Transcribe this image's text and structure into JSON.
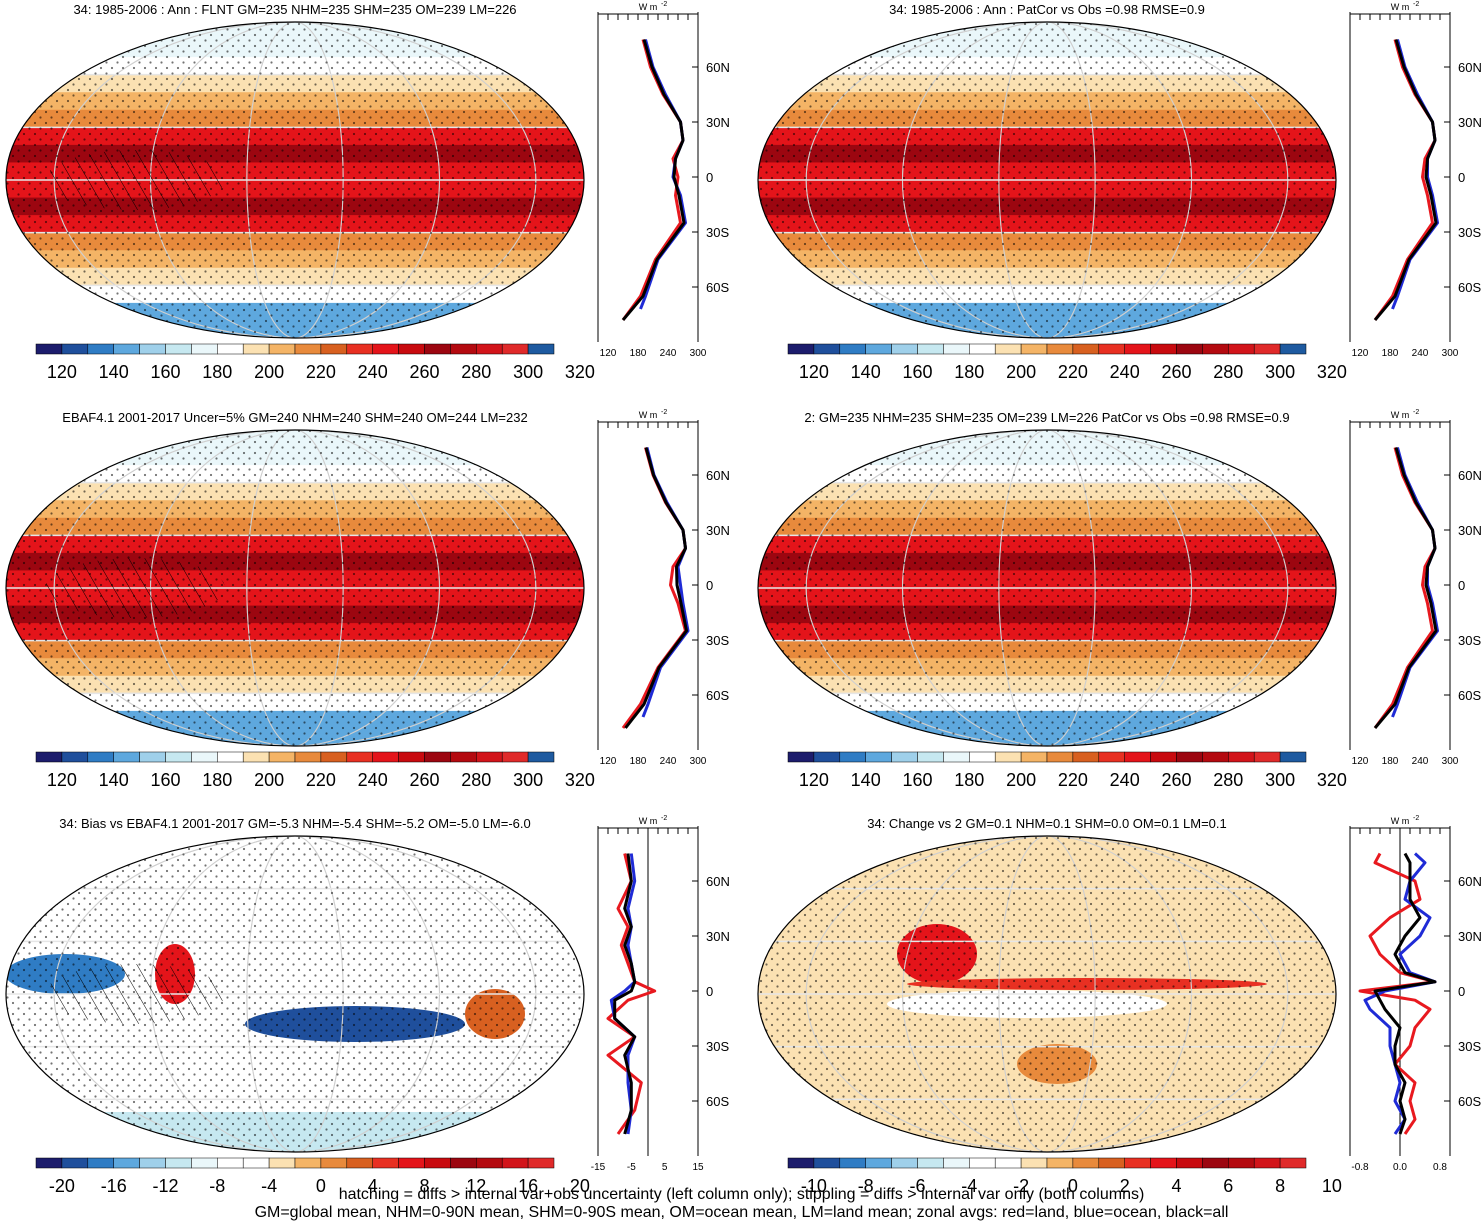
{
  "chart_data": [
    {
      "type": "heatmap",
      "id": "p1",
      "title": "34: 1985-2006 : Ann : FLNT GM=235 NHM=235 SHM=235 OM=239 LM=226",
      "colorbar_ticks": [
        "120",
        "140",
        "160",
        "180",
        "200",
        "220",
        "240",
        "260",
        "280",
        "300",
        "320"
      ],
      "zonal_x_ticks": [
        "120",
        "180",
        "240",
        "300"
      ],
      "zonal_xlim": [
        100,
        300
      ],
      "lat_ticks": [
        "60N",
        "30N",
        "0",
        "30S",
        "60S"
      ],
      "zonal_unit": "W m-2",
      "hatching": true,
      "stippling": true,
      "zonal_series": [
        {
          "color": "land",
          "lat": [
            -78,
            -65,
            -45,
            -25,
            -10,
            0,
            10,
            20,
            30,
            45,
            60,
            75
          ],
          "values": [
            150,
            185,
            215,
            265,
            255,
            260,
            250,
            270,
            265,
            230,
            205,
            190
          ]
        },
        {
          "color": "ocean",
          "lat": [
            -72,
            -65,
            -45,
            -25,
            -10,
            0,
            10,
            20,
            30,
            45,
            60,
            75
          ],
          "values": [
            185,
            195,
            220,
            275,
            265,
            250,
            255,
            270,
            265,
            235,
            210,
            195
          ]
        },
        {
          "color": "all",
          "lat": [
            -78,
            -65,
            -45,
            -25,
            -10,
            0,
            10,
            20,
            30,
            45,
            60,
            75
          ],
          "values": [
            150,
            190,
            218,
            272,
            262,
            252,
            255,
            270,
            265,
            232,
            208,
            192
          ]
        }
      ]
    },
    {
      "type": "heatmap",
      "id": "p2",
      "title": "34: 1985-2006 : Ann : PatCor vs Obs =0.98 RMSE=0.9",
      "colorbar_ticks": [
        "120",
        "140",
        "160",
        "180",
        "200",
        "220",
        "240",
        "260",
        "280",
        "300",
        "320"
      ],
      "zonal_x_ticks": [
        "120",
        "180",
        "240",
        "300"
      ],
      "zonal_xlim": [
        100,
        300
      ],
      "lat_ticks": [
        "60N",
        "30N",
        "0",
        "30S",
        "60S"
      ],
      "zonal_unit": "W m-2",
      "hatching": false,
      "stippling": true,
      "zonal_series": [
        {
          "color": "land",
          "lat": [
            -78,
            -65,
            -45,
            -25,
            -10,
            0,
            10,
            20,
            30,
            45,
            60,
            75
          ],
          "values": [
            150,
            185,
            215,
            265,
            255,
            245,
            250,
            270,
            265,
            230,
            205,
            190
          ]
        },
        {
          "color": "ocean",
          "lat": [
            -72,
            -65,
            -45,
            -25,
            -10,
            0,
            10,
            20,
            30,
            45,
            60,
            75
          ],
          "values": [
            185,
            195,
            220,
            275,
            265,
            255,
            255,
            270,
            265,
            235,
            210,
            195
          ]
        },
        {
          "color": "all",
          "lat": [
            -78,
            -65,
            -45,
            -25,
            -10,
            0,
            10,
            20,
            30,
            45,
            60,
            75
          ],
          "values": [
            150,
            190,
            218,
            272,
            262,
            252,
            255,
            270,
            265,
            232,
            208,
            192
          ]
        }
      ]
    },
    {
      "type": "heatmap",
      "id": "p3",
      "title": "EBAF4.1 2001-2017 Uncer=5% GM=240 NHM=240 SHM=240 OM=244 LM=232",
      "colorbar_ticks": [
        "120",
        "140",
        "160",
        "180",
        "200",
        "220",
        "240",
        "260",
        "280",
        "300",
        "320"
      ],
      "zonal_x_ticks": [
        "120",
        "180",
        "240",
        "300"
      ],
      "zonal_xlim": [
        100,
        300
      ],
      "lat_ticks": [
        "60N",
        "30N",
        "0",
        "30S",
        "60S"
      ],
      "zonal_unit": "W m-2",
      "hatching": true,
      "stippling": true,
      "zonal_series": [
        {
          "color": "land",
          "lat": [
            -78,
            -65,
            -45,
            -25,
            -10,
            0,
            10,
            20,
            30,
            45,
            60,
            75
          ],
          "values": [
            150,
            185,
            220,
            275,
            260,
            245,
            250,
            275,
            270,
            235,
            210,
            195
          ]
        },
        {
          "color": "ocean",
          "lat": [
            -72,
            -65,
            -45,
            -25,
            -10,
            0,
            10,
            20,
            30,
            45,
            60,
            75
          ],
          "values": [
            190,
            200,
            225,
            280,
            270,
            265,
            260,
            275,
            270,
            238,
            212,
            198
          ]
        },
        {
          "color": "all",
          "lat": [
            -78,
            -65,
            -45,
            -25,
            -10,
            0,
            10,
            20,
            30,
            45,
            60,
            75
          ],
          "values": [
            155,
            192,
            222,
            277,
            266,
            258,
            257,
            275,
            270,
            236,
            211,
            196
          ]
        }
      ]
    },
    {
      "type": "heatmap",
      "id": "p4",
      "title": "2: GM=235 NHM=235 SHM=235 OM=239 LM=226 PatCor vs Obs =0.98 RMSE=0.9",
      "colorbar_ticks": [
        "120",
        "140",
        "160",
        "180",
        "200",
        "220",
        "240",
        "260",
        "280",
        "300",
        "320"
      ],
      "zonal_x_ticks": [
        "120",
        "180",
        "240",
        "300"
      ],
      "zonal_xlim": [
        100,
        300
      ],
      "lat_ticks": [
        "60N",
        "30N",
        "0",
        "30S",
        "60S"
      ],
      "zonal_unit": "W m-2",
      "hatching": false,
      "stippling": true,
      "zonal_series": [
        {
          "color": "land",
          "lat": [
            -78,
            -65,
            -45,
            -25,
            -10,
            0,
            10,
            20,
            30,
            45,
            60,
            75
          ],
          "values": [
            150,
            185,
            215,
            265,
            255,
            245,
            250,
            270,
            265,
            230,
            205,
            190
          ]
        },
        {
          "color": "ocean",
          "lat": [
            -72,
            -65,
            -45,
            -25,
            -10,
            0,
            10,
            20,
            30,
            45,
            60,
            75
          ],
          "values": [
            185,
            195,
            220,
            275,
            265,
            255,
            255,
            270,
            265,
            235,
            210,
            195
          ]
        },
        {
          "color": "all",
          "lat": [
            -78,
            -65,
            -45,
            -25,
            -10,
            0,
            10,
            20,
            30,
            45,
            60,
            75
          ],
          "values": [
            150,
            190,
            218,
            272,
            262,
            252,
            255,
            270,
            265,
            232,
            208,
            192
          ]
        }
      ]
    },
    {
      "type": "heatmap",
      "id": "p5",
      "title": "34: Bias vs EBAF4.1 2001-2017 GM=-5.3 NHM=-5.4 SHM=-5.2 OM=-5.0 LM=-6.0",
      "colorbar_ticks": [
        "-20",
        "-16",
        "-12",
        "-8",
        "-4",
        "0",
        "4",
        "8",
        "12",
        "16",
        "20"
      ],
      "zonal_x_ticks": [
        "-15",
        "-5",
        "5",
        "15"
      ],
      "zonal_xlim": [
        -15,
        15
      ],
      "lat_ticks": [
        "60N",
        "30N",
        "0",
        "30S",
        "60S"
      ],
      "zonal_unit": "W m-2",
      "hatching": true,
      "stippling": true,
      "zonal_series": [
        {
          "color": "land",
          "lat": [
            -78,
            -65,
            -50,
            -35,
            -25,
            -15,
            -5,
            0,
            5,
            15,
            25,
            35,
            45,
            60,
            75
          ],
          "values": [
            -9,
            -4,
            -2,
            -12,
            -4,
            -12,
            -6,
            2,
            -4,
            -6,
            -8,
            -6,
            -9,
            -5,
            -7
          ]
        },
        {
          "color": "ocean",
          "lat": [
            -78,
            -65,
            -50,
            -35,
            -25,
            -15,
            -5,
            0,
            5,
            15,
            25,
            35,
            45,
            60,
            75
          ],
          "values": [
            -6,
            -5,
            -6,
            -6,
            -4,
            -10,
            -11,
            -7,
            -4,
            -5,
            -6,
            -5,
            -6,
            -4,
            -5
          ]
        },
        {
          "color": "all",
          "lat": [
            -78,
            -65,
            -50,
            -35,
            -25,
            -15,
            -5,
            0,
            5,
            15,
            25,
            35,
            45,
            60,
            75
          ],
          "values": [
            -7,
            -5,
            -5,
            -7,
            -4,
            -10,
            -10,
            -5,
            -4,
            -5,
            -7,
            -5,
            -7,
            -5,
            -6
          ]
        }
      ]
    },
    {
      "type": "heatmap",
      "id": "p6",
      "title": "34: Change vs 2 GM=0.1 NHM=0.1 SHM=0.0 OM=0.1 LM=0.1",
      "colorbar_ticks": [
        "-10",
        "-8",
        "-6",
        "-4",
        "-2",
        "0",
        "2",
        "4",
        "6",
        "8",
        "10"
      ],
      "zonal_x_ticks": [
        "-0.8",
        "0.0",
        "0.8"
      ],
      "zonal_xlim": [
        -1,
        1
      ],
      "lat_ticks": [
        "60N",
        "30N",
        "0",
        "30S",
        "60S"
      ],
      "zonal_unit": "W m-2",
      "hatching": false,
      "stippling": true,
      "zonal_series": [
        {
          "color": "land",
          "lat": [
            -78,
            -70,
            -60,
            -50,
            -40,
            -30,
            -20,
            -10,
            -5,
            0,
            5,
            10,
            20,
            30,
            40,
            50,
            60,
            70,
            75
          ],
          "values": [
            0.1,
            0.3,
            0.2,
            0.3,
            -0.1,
            0.2,
            0.3,
            0.6,
            0.3,
            -0.8,
            0.7,
            0.0,
            -0.4,
            -0.6,
            -0.2,
            0.4,
            0.3,
            -0.5,
            -0.4
          ]
        },
        {
          "color": "ocean",
          "lat": [
            -78,
            -70,
            -60,
            -50,
            -40,
            -30,
            -20,
            -10,
            -5,
            0,
            5,
            10,
            20,
            30,
            40,
            50,
            60,
            70,
            75
          ],
          "values": [
            -0.1,
            0.1,
            -0.1,
            0.0,
            -0.1,
            -0.2,
            -0.2,
            -0.6,
            -0.7,
            -0.3,
            0.7,
            0.2,
            0.0,
            0.4,
            0.6,
            0.1,
            0.2,
            0.5,
            0.3
          ]
        },
        {
          "color": "all",
          "lat": [
            -78,
            -70,
            -60,
            -50,
            -40,
            -30,
            -20,
            -10,
            -5,
            0,
            5,
            10,
            20,
            30,
            40,
            50,
            60,
            70,
            75
          ],
          "values": [
            0.0,
            0.1,
            0.0,
            0.1,
            -0.1,
            -0.1,
            0.0,
            -0.3,
            -0.4,
            -0.5,
            0.7,
            0.1,
            -0.1,
            0.1,
            0.4,
            0.2,
            0.2,
            0.2,
            0.1
          ]
        }
      ]
    }
  ],
  "footer": {
    "line1": "hatching = diffs > internal var+obs uncertainty (left column only); stippling = diffs > internal var only (both columns)",
    "line2": "GM=global mean, NHM=0-90N mean, SHM=0-90S mean, OM=ocean mean, LM=land mean; zonal avgs: red=land, blue=ocean, black=all"
  },
  "colors": {
    "land": "#e8191f",
    "ocean": "#1f2bd6",
    "all": "#000000",
    "palette_abs": [
      "#1c1c6c",
      "#1f4f9c",
      "#2f7cc4",
      "#5ea8de",
      "#9fd0ea",
      "#c6e8f0",
      "#eaf7fa",
      "#ffffff",
      "#fbe1b2",
      "#f4b466",
      "#e88a3c",
      "#d86020",
      "#e83022",
      "#e4141a",
      "#c80a0f",
      "#9c0610",
      "#b40a10",
      "#d2141a",
      "#e02a2a",
      "#1e5aa0"
    ],
    "palette_div": [
      "#1c1c6c",
      "#1f4f9c",
      "#2f7cc4",
      "#5ea8de",
      "#9fd0ea",
      "#c6e8f0",
      "#eaf7fa",
      "#ffffff",
      "#ffffff",
      "#fbe1b2",
      "#f4b466",
      "#e88a3c",
      "#d86020",
      "#e83022",
      "#e4141a",
      "#c80a0f",
      "#9c0610",
      "#b40a10",
      "#d2141a",
      "#e02a2a"
    ]
  }
}
